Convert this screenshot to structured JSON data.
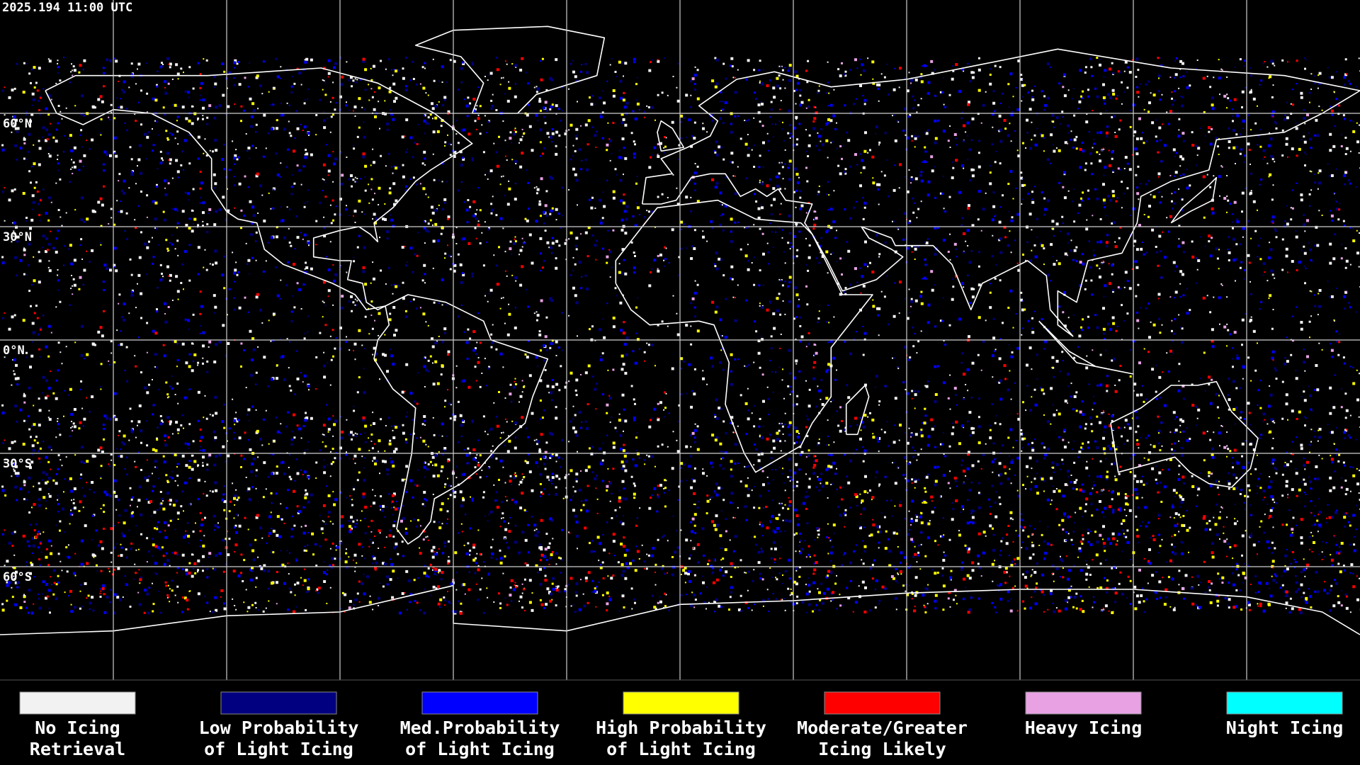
{
  "header": {
    "timestamp": "2025.194 11:00 UTC"
  },
  "map": {
    "lat_labels": [
      "60°N",
      "30°N",
      "0°N",
      "30°S",
      "60°S"
    ]
  },
  "legend": {
    "items": [
      {
        "color": "#f2f2f2",
        "lines": [
          "No Icing",
          "Retrieval"
        ]
      },
      {
        "color": "#000080",
        "lines": [
          "Low Probability",
          "of Light Icing"
        ]
      },
      {
        "color": "#0000ff",
        "lines": [
          "Med.Probability",
          "of Light Icing"
        ]
      },
      {
        "color": "#ffff00",
        "lines": [
          "High Probability",
          "of Light Icing"
        ]
      },
      {
        "color": "#ff0000",
        "lines": [
          "Moderate/Greater",
          "Icing Likely"
        ]
      },
      {
        "color": "#e8a2e4",
        "lines": [
          "Heavy Icing"
        ]
      },
      {
        "color": "#00ffff",
        "lines": [
          "Night Icing"
        ]
      }
    ]
  }
}
